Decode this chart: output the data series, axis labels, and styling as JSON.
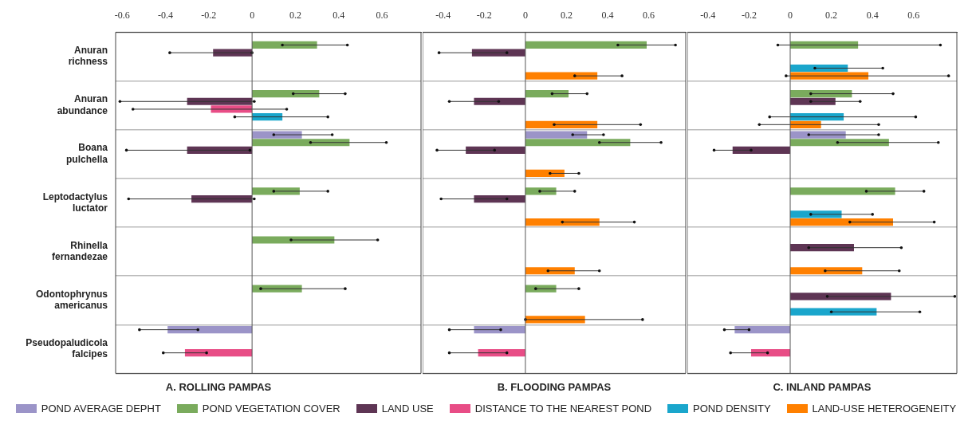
{
  "chart_data": [
    {
      "type": "bar",
      "orientation": "horizontal",
      "title": "A. ROLLING PAMPAS",
      "categories": [
        "Anuran richness",
        "Anuran abundance",
        "Boana pulchella",
        "Leptodactylus luctator",
        "Rhinella fernandezae",
        "Odontophrynus americanus",
        "Pseudopaludicola falcipes"
      ],
      "xlim": [
        -0.63,
        0.78
      ],
      "xticks": [
        -0.6,
        -0.4,
        -0.2,
        0,
        0.2,
        0.4,
        0.6
      ],
      "grid": "y",
      "legend": "bottom",
      "series": [
        {
          "name": "POND AVERAGE DEPHT",
          "color": "#9b94c8",
          "values": [
            null,
            null,
            0.23,
            null,
            null,
            null,
            -0.39
          ],
          "errors": [
            null,
            null,
            [
              0.1,
              0.37
            ],
            null,
            null,
            null,
            [
              -0.52,
              -0.25
            ]
          ]
        },
        {
          "name": "POND VEGETATION COVER",
          "color": "#7aab5d",
          "values": [
            0.3,
            0.31,
            0.45,
            0.22,
            0.38,
            0.23,
            null
          ],
          "errors": [
            [
              0.14,
              0.44
            ],
            [
              0.19,
              0.43
            ],
            [
              0.27,
              0.62
            ],
            [
              0.1,
              0.35
            ],
            [
              0.18,
              0.58
            ],
            [
              0.04,
              0.43
            ],
            null
          ]
        },
        {
          "name": "LAND USE",
          "color": "#5e3554",
          "values": [
            -0.18,
            -0.3,
            -0.3,
            -0.28,
            null,
            null,
            null
          ],
          "errors": [
            [
              -0.38,
              0.0
            ],
            [
              -0.61,
              0.01
            ],
            [
              -0.58,
              -0.01
            ],
            [
              -0.57,
              0.01
            ],
            null,
            null,
            null
          ]
        },
        {
          "name": "DISTANCE TO THE NEAREST POND",
          "color": "#e84d86",
          "values": [
            null,
            -0.19,
            null,
            null,
            null,
            null,
            -0.31
          ],
          "errors": [
            null,
            [
              -0.55,
              0.16
            ],
            null,
            null,
            null,
            null,
            [
              -0.41,
              -0.21
            ]
          ]
        },
        {
          "name": "POND DENSITY",
          "color": "#1aa6cc",
          "values": [
            null,
            0.14,
            null,
            null,
            null,
            null,
            null
          ],
          "errors": [
            null,
            [
              -0.08,
              0.35
            ],
            null,
            null,
            null,
            null,
            null
          ]
        },
        {
          "name": "LAND-USE HETEROGENEITY",
          "color": "#ff8000",
          "values": [
            null,
            null,
            null,
            null,
            null,
            null,
            null
          ],
          "errors": [
            null,
            null,
            null,
            null,
            null,
            null,
            null
          ]
        }
      ]
    },
    {
      "type": "bar",
      "orientation": "horizontal",
      "title": "B. FLOODING PAMPAS",
      "categories": [
        null,
        null,
        null,
        null,
        null,
        null,
        null
      ],
      "tick_labels": "x",
      "xlim": [
        -0.5,
        0.78
      ],
      "xticks": [
        -0.4,
        -0.2,
        0,
        0.2,
        0.4,
        0.6
      ],
      "grid": "y",
      "series": [
        {
          "color": "#9b94c8",
          "values": [
            null,
            null,
            0.3,
            null,
            null,
            null,
            -0.25
          ],
          "errors": [
            null,
            null,
            [
              0.23,
              0.38
            ],
            null,
            null,
            null,
            [
              -0.37,
              -0.12
            ]
          ]
        },
        {
          "color": "#7aab5d",
          "values": [
            0.59,
            0.21,
            0.51,
            0.15,
            null,
            0.15,
            null
          ],
          "errors": [
            [
              0.45,
              0.73
            ],
            [
              0.13,
              0.3
            ],
            [
              0.36,
              0.66
            ],
            [
              0.07,
              0.24
            ],
            null,
            [
              0.05,
              0.26
            ],
            null
          ]
        },
        {
          "color": "#5e3554",
          "values": [
            -0.26,
            -0.25,
            -0.29,
            -0.25,
            null,
            null,
            null
          ],
          "errors": [
            [
              -0.42,
              -0.09
            ],
            [
              -0.37,
              -0.13
            ],
            [
              -0.43,
              -0.15
            ],
            [
              -0.41,
              -0.09
            ],
            null,
            null,
            null
          ]
        },
        {
          "color": "#e84d86",
          "values": [
            null,
            null,
            null,
            null,
            null,
            null,
            -0.23
          ],
          "errors": [
            null,
            null,
            null,
            null,
            null,
            null,
            [
              -0.37,
              -0.09
            ]
          ]
        },
        {
          "color": "#1aa6cc",
          "values": [
            null,
            null,
            null,
            null,
            null,
            null,
            null
          ],
          "errors": [
            null,
            null,
            null,
            null,
            null,
            null,
            null
          ]
        },
        {
          "color": "#ff8000",
          "values": [
            0.35,
            0.35,
            0.19,
            0.36,
            0.24,
            0.29,
            null
          ],
          "errors": [
            [
              0.24,
              0.47
            ],
            [
              0.14,
              0.56
            ],
            [
              0.12,
              0.26
            ],
            [
              0.18,
              0.53
            ],
            [
              0.11,
              0.36
            ],
            [
              0.0,
              0.57
            ],
            null
          ]
        }
      ]
    },
    {
      "type": "bar",
      "orientation": "horizontal",
      "title": "C. INLAND PAMPAS",
      "categories": [
        null,
        null,
        null,
        null,
        null,
        null,
        null
      ],
      "tick_labels": "x",
      "xlim": [
        -0.5,
        0.81
      ],
      "xticks": [
        -0.4,
        -0.2,
        0,
        0.2,
        0.4,
        0.6
      ],
      "grid": "y",
      "series": [
        {
          "color": "#9b94c8",
          "values": [
            null,
            null,
            0.27,
            null,
            null,
            null,
            -0.27
          ],
          "errors": [
            null,
            null,
            [
              0.09,
              0.43
            ],
            null,
            null,
            null,
            [
              -0.32,
              -0.2
            ]
          ]
        },
        {
          "color": "#7aab5d",
          "values": [
            0.33,
            0.3,
            0.48,
            0.51,
            null,
            null,
            null
          ],
          "errors": [
            [
              -0.06,
              0.73
            ],
            [
              0.1,
              0.5
            ],
            [
              0.23,
              0.72
            ],
            [
              0.37,
              0.65
            ],
            null,
            null,
            null
          ]
        },
        {
          "color": "#5e3554",
          "values": [
            null,
            0.22,
            -0.28,
            null,
            0.31,
            0.49,
            null
          ],
          "errors": [
            null,
            [
              0.1,
              0.34
            ],
            [
              -0.37,
              -0.19
            ],
            null,
            [
              0.09,
              0.54
            ],
            [
              0.18,
              0.8
            ],
            null
          ]
        },
        {
          "color": "#e84d86",
          "values": [
            null,
            null,
            null,
            null,
            null,
            null,
            -0.19
          ],
          "errors": [
            null,
            null,
            null,
            null,
            null,
            null,
            [
              -0.29,
              -0.11
            ]
          ]
        },
        {
          "color": "#1aa6cc",
          "values": [
            0.28,
            0.26,
            null,
            0.25,
            null,
            0.42,
            null
          ],
          "errors": [
            [
              0.12,
              0.45
            ],
            [
              -0.1,
              0.61
            ],
            null,
            [
              0.1,
              0.4
            ],
            null,
            [
              0.2,
              0.63
            ],
            null
          ]
        },
        {
          "color": "#ff8000",
          "values": [
            0.38,
            0.15,
            null,
            0.5,
            0.35,
            null,
            null
          ],
          "errors": [
            [
              -0.02,
              0.77
            ],
            [
              -0.15,
              0.43
            ],
            null,
            [
              0.29,
              0.7
            ],
            [
              0.17,
              0.53
            ],
            null,
            null
          ]
        }
      ]
    }
  ]
}
